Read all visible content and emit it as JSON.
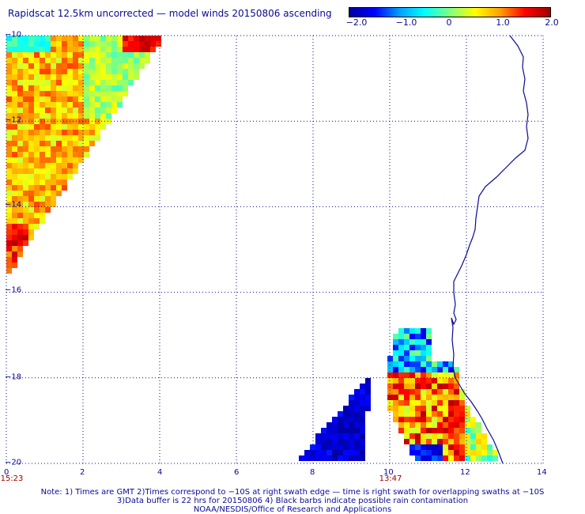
{
  "title": "Rapidscat 12.5km uncorrected — model winds 20150806 ascending",
  "colorbar": {
    "min": -2.0,
    "max": 2.0,
    "labels": [
      "−2.0",
      "−1.0",
      "0",
      "1.0",
      "2.0"
    ],
    "colors": [
      "#0000a0",
      "#0000ff",
      "#00a0ff",
      "#00ffff",
      "#80ff80",
      "#ffff00",
      "#ffa000",
      "#ff0000",
      "#a00000"
    ]
  },
  "map": {
    "lon_range": [
      0,
      14
    ],
    "lat_range": [
      -20,
      -10
    ],
    "x_tick_labels": [
      "0",
      "2",
      "4",
      "6",
      "8",
      "10",
      "12",
      "14"
    ],
    "y_tick_labels": [
      "−10",
      "−12",
      "−14",
      "−16",
      "−18",
      "−20"
    ],
    "time_labels": [
      {
        "lon": 0,
        "text": "15:23"
      },
      {
        "lon": 10,
        "text": "13:47"
      }
    ],
    "colors": {
      "grid": "#0a0a96",
      "coast": "#0a0a96",
      "time": "#a00000"
    }
  },
  "notes": {
    "line1": "Note: 1) Times are GMT 2)Times correspond to −10S at right swath edge — time is right swath for overlapping swaths at −10S",
    "line2": "3)Data buffer is 22 hrs for 20150806 4) Black barbs indicate possible rain contamination",
    "line3": "NOAA/NESDIS/Office of Research and Applications"
  }
}
